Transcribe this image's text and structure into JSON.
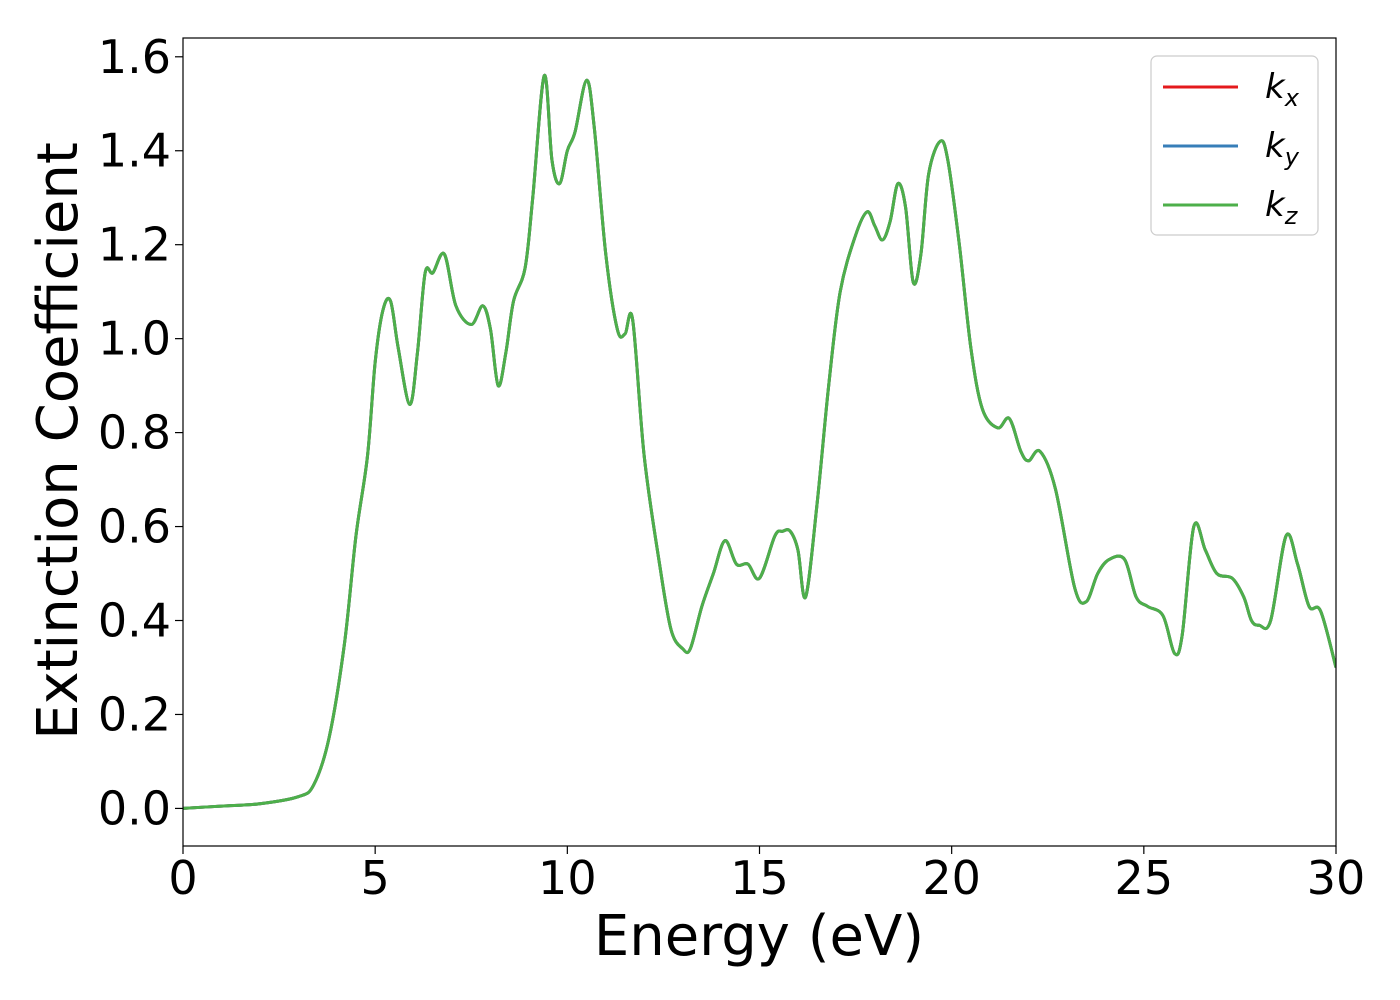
{
  "chart_data": {
    "type": "line",
    "xlabel": "Energy (eV)",
    "ylabel": "Extinction Coefficient",
    "xlim": [
      0,
      30
    ],
    "ylim": [
      -0.08,
      1.64
    ],
    "xticks": [
      0,
      5,
      10,
      15,
      20,
      25,
      30
    ],
    "xtick_labels": [
      "0",
      "5",
      "10",
      "15",
      "20",
      "25",
      "30"
    ],
    "yticks": [
      0.0,
      0.2,
      0.4,
      0.6,
      0.8,
      1.0,
      1.2,
      1.4,
      1.6
    ],
    "ytick_labels": [
      "0.0",
      "0.2",
      "0.4",
      "0.6",
      "0.8",
      "1.0",
      "1.2",
      "1.4",
      "1.6"
    ],
    "grid": false,
    "legend_position": "top-right",
    "series": [
      {
        "name": "k",
        "subscript": "x",
        "color": "#e41a1c"
      },
      {
        "name": "k",
        "subscript": "y",
        "color": "#377eb8"
      },
      {
        "name": "k",
        "subscript": "z",
        "color": "#4daf4a"
      }
    ],
    "note_all_series_identical": true,
    "x": [
      0,
      1,
      2,
      3,
      3.4,
      3.8,
      4.2,
      4.5,
      4.8,
      5.0,
      5.2,
      5.4,
      5.6,
      5.9,
      6.1,
      6.3,
      6.5,
      6.8,
      7.1,
      7.5,
      7.8,
      8.0,
      8.2,
      8.4,
      8.6,
      8.9,
      9.1,
      9.4,
      9.6,
      9.8,
      10.0,
      10.2,
      10.5,
      10.7,
      11.0,
      11.3,
      11.5,
      11.7,
      12.0,
      12.4,
      12.7,
      13.0,
      13.2,
      13.5,
      13.8,
      14.1,
      14.4,
      14.7,
      15.0,
      15.4,
      15.6,
      15.8,
      16.0,
      16.2,
      16.5,
      16.8,
      17.1,
      17.5,
      17.8,
      18.0,
      18.2,
      18.4,
      18.6,
      18.8,
      19.0,
      19.2,
      19.4,
      19.7,
      19.9,
      20.2,
      20.5,
      20.8,
      21.2,
      21.5,
      21.8,
      22.0,
      22.3,
      22.7,
      23.2,
      23.5,
      23.8,
      24.1,
      24.5,
      24.8,
      25.1,
      25.5,
      25.8,
      26.0,
      26.3,
      26.6,
      26.9,
      27.3,
      27.6,
      27.8,
      28.0,
      28.3,
      28.7,
      29.0,
      29.3,
      29.6,
      30.0
    ],
    "y": [
      0.0,
      0.005,
      0.01,
      0.025,
      0.05,
      0.15,
      0.35,
      0.58,
      0.75,
      0.95,
      1.06,
      1.08,
      0.98,
      0.86,
      0.97,
      1.14,
      1.14,
      1.18,
      1.07,
      1.03,
      1.07,
      1.02,
      0.9,
      0.97,
      1.08,
      1.15,
      1.3,
      1.56,
      1.38,
      1.33,
      1.4,
      1.44,
      1.55,
      1.45,
      1.18,
      1.02,
      1.01,
      1.04,
      0.75,
      0.52,
      0.38,
      0.34,
      0.34,
      0.43,
      0.5,
      0.57,
      0.52,
      0.52,
      0.49,
      0.58,
      0.59,
      0.59,
      0.55,
      0.45,
      0.65,
      0.9,
      1.1,
      1.22,
      1.27,
      1.24,
      1.21,
      1.25,
      1.33,
      1.28,
      1.12,
      1.18,
      1.35,
      1.42,
      1.38,
      1.2,
      0.98,
      0.85,
      0.81,
      0.83,
      0.76,
      0.74,
      0.76,
      0.68,
      0.47,
      0.44,
      0.5,
      0.53,
      0.53,
      0.45,
      0.43,
      0.41,
      0.33,
      0.37,
      0.6,
      0.55,
      0.5,
      0.49,
      0.45,
      0.4,
      0.39,
      0.4,
      0.58,
      0.52,
      0.43,
      0.42,
      0.3
    ]
  }
}
